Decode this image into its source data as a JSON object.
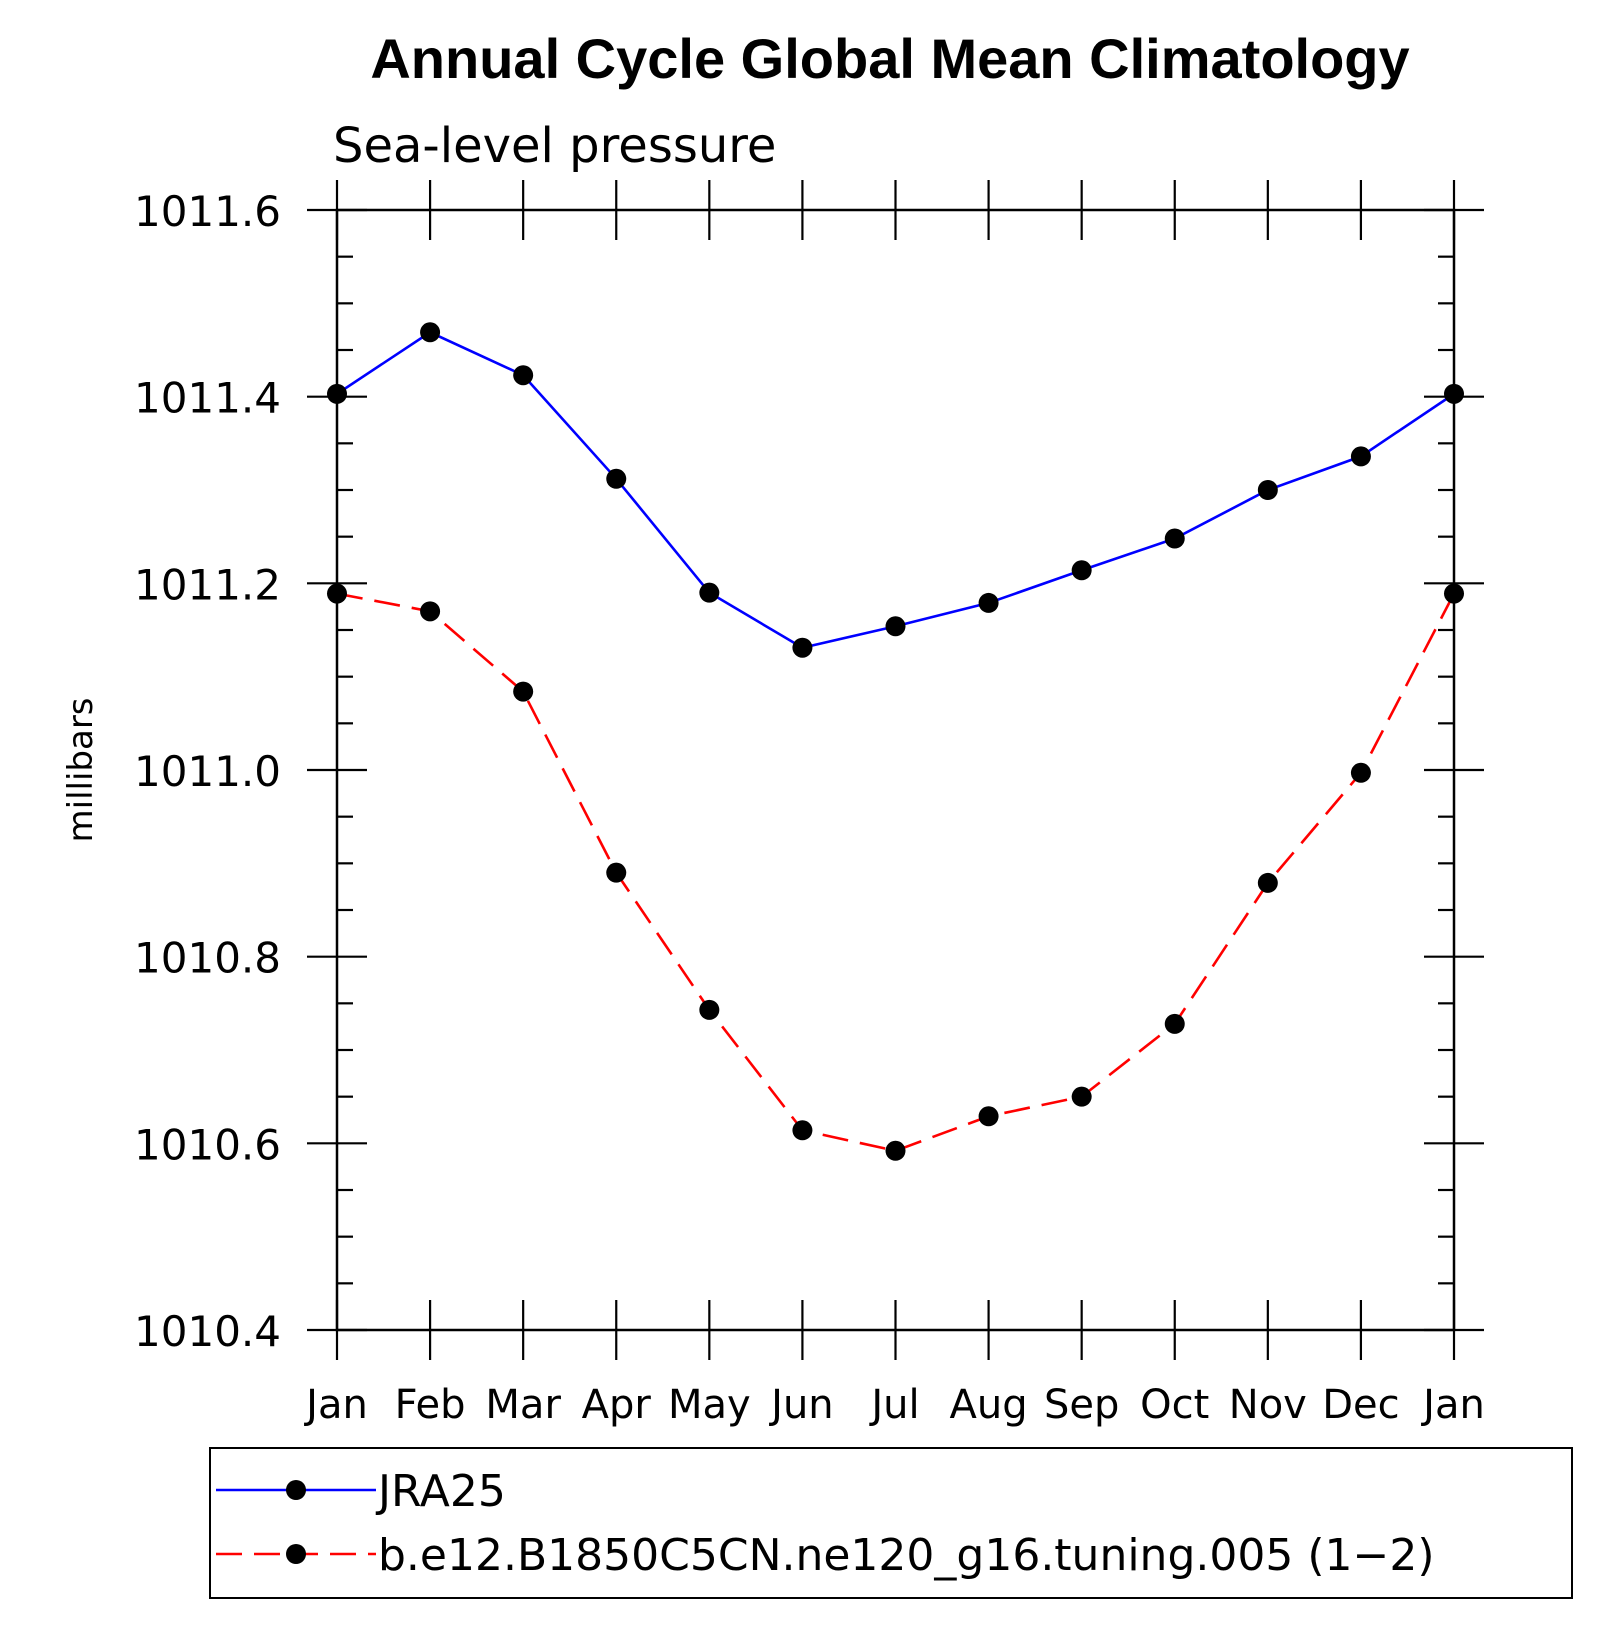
{
  "chart_data": {
    "type": "line",
    "title": "Annual Cycle Global Mean Climatology",
    "subtitle": "Sea-level pressure",
    "xlabel": "",
    "ylabel": "millibars",
    "categories": [
      "Jan",
      "Feb",
      "Mar",
      "Apr",
      "May",
      "Jun",
      "Jul",
      "Aug",
      "Sep",
      "Oct",
      "Nov",
      "Dec",
      "Jan"
    ],
    "ylim": [
      1010.4,
      1011.6
    ],
    "yticks": [
      "1010.4",
      "1010.6",
      "1010.8",
      "1011.0",
      "1011.2",
      "1011.4",
      "1011.6"
    ],
    "series": [
      {
        "name": "JRA25",
        "color": "#0000ff",
        "dash": "solid",
        "marker": "filled-circle",
        "values": [
          1011.403,
          1011.469,
          1011.423,
          1011.312,
          1011.19,
          1011.131,
          1011.154,
          1011.179,
          1011.214,
          1011.248,
          1011.3,
          1011.336,
          1011.403
        ]
      },
      {
        "name": "b.e12.B1850C5CN.ne120_g16.tuning.005 (1−2)",
        "color": "#ff0000",
        "dash": "dashed",
        "marker": "filled-circle",
        "values": [
          1011.189,
          1011.17,
          1011.084,
          1010.89,
          1010.743,
          1010.614,
          1010.592,
          1010.629,
          1010.65,
          1010.728,
          1010.879,
          1010.997,
          1011.189
        ]
      }
    ],
    "grid": false,
    "legend_position": "bottom"
  }
}
